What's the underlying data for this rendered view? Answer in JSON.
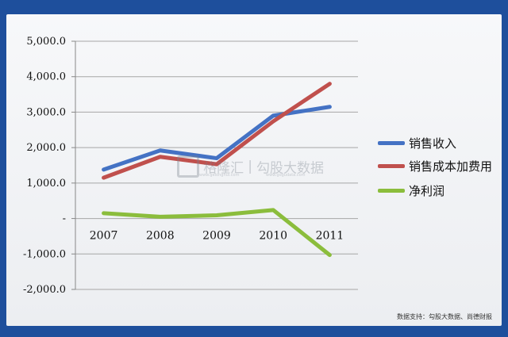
{
  "chart_data": {
    "type": "line",
    "title": "",
    "xlabel": "",
    "ylabel": "",
    "categories": [
      "2007",
      "2008",
      "2009",
      "2010",
      "2011"
    ],
    "y_ticks": [
      "5,000.0",
      "4,000.0",
      "3,000.0",
      "2,000.0",
      "1,000.0",
      "-",
      "-1,000.0",
      "-2,000.0"
    ],
    "ylim": [
      -2000,
      5000
    ],
    "grid": true,
    "legend_position": "right",
    "series": [
      {
        "name": "销售收入",
        "color": "#4472c4",
        "values": [
          1380,
          1920,
          1700,
          2900,
          3150
        ]
      },
      {
        "name": "销售成本加费用",
        "color": "#c0504d",
        "values": [
          1150,
          1740,
          1530,
          2740,
          3800
        ]
      },
      {
        "name": "净利润",
        "color": "#8bbd3c",
        "values": [
          150,
          50,
          90,
          240,
          -1030
        ]
      }
    ]
  },
  "watermark": {
    "brand": "格隆汇",
    "brand_url": "www.gelonghui.com",
    "brand2": "勾股大数据",
    "brand2_url": "www.gogudata.com"
  },
  "source_text": "数据支持：勾股大数据、尚德财报"
}
